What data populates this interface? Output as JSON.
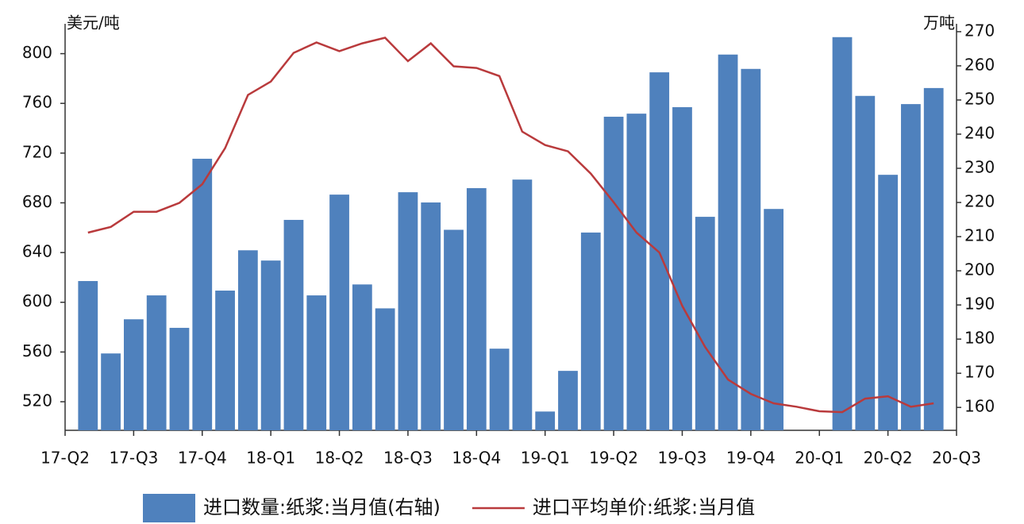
{
  "chart_data": {
    "type": "bar",
    "y_label": "美元/吨",
    "y2_label": "万吨",
    "x": [
      1,
      2,
      3,
      4,
      5,
      6,
      7,
      8,
      9,
      10,
      11,
      12,
      13,
      14,
      15,
      16,
      17,
      18,
      19,
      20,
      21,
      22,
      23,
      24,
      25,
      26,
      27,
      28,
      29,
      30,
      31,
      32,
      33,
      34,
      35,
      36,
      37,
      38
    ],
    "xlim": [
      0,
      39
    ],
    "xticks": [
      {
        "value": 0,
        "label": "17-Q2"
      },
      {
        "value": 3,
        "label": "17-Q3"
      },
      {
        "value": 6,
        "label": "17-Q4"
      },
      {
        "value": 9,
        "label": "18-Q1"
      },
      {
        "value": 12,
        "label": "18-Q2"
      },
      {
        "value": 15,
        "label": "18-Q3"
      },
      {
        "value": 18,
        "label": "18-Q4"
      },
      {
        "value": 21,
        "label": "19-Q1"
      },
      {
        "value": 24,
        "label": "19-Q2"
      },
      {
        "value": 27,
        "label": "19-Q3"
      },
      {
        "value": 30,
        "label": "19-Q4"
      },
      {
        "value": 33,
        "label": "20-Q1"
      },
      {
        "value": 36,
        "label": "20-Q2"
      },
      {
        "value": 39,
        "label": "20-Q3"
      }
    ],
    "ylim": [
      497,
      824
    ],
    "yticks": [
      520,
      560,
      600,
      640,
      680,
      720,
      760,
      800
    ],
    "y2lim": [
      153.3,
      272.3
    ],
    "y2ticks": [
      160,
      170,
      180,
      190,
      200,
      210,
      220,
      230,
      240,
      250,
      260,
      270
    ],
    "legend": "bottom",
    "series": [
      {
        "name": "进口数量:纸浆:当月值(右轴)",
        "type": "bar",
        "axis": "y2",
        "color": "#4f81bd",
        "values": [
          197,
          175.8,
          185.8,
          192.8,
          183.3,
          232.8,
          194.2,
          206,
          203,
          214.9,
          192.8,
          222.3,
          196,
          189,
          223,
          220,
          212,
          224.2,
          177.2,
          226.7,
          158.8,
          170.7,
          211.2,
          245.1,
          246,
          258.1,
          247.9,
          215.8,
          263.3,
          259.1,
          218.1,
          null,
          null,
          268.4,
          251.2,
          228.1,
          248.8,
          253.5
        ]
      },
      {
        "name": "进口平均单价:纸浆:当月值",
        "type": "line",
        "color": "#b93a3c",
        "values": [
          656,
          660.6,
          672.8,
          672.8,
          680,
          695,
          724,
          766.8,
          777.6,
          800.6,
          809,
          802,
          808.3,
          812.8,
          794,
          808.3,
          789.8,
          788.5,
          782,
          737.3,
          726.5,
          721.4,
          703.5,
          680.4,
          656,
          640,
          597,
          564,
          537.8,
          526.3,
          518.7,
          516,
          512.3,
          511.6,
          522.5,
          524.4,
          516,
          518.7
        ]
      }
    ]
  }
}
